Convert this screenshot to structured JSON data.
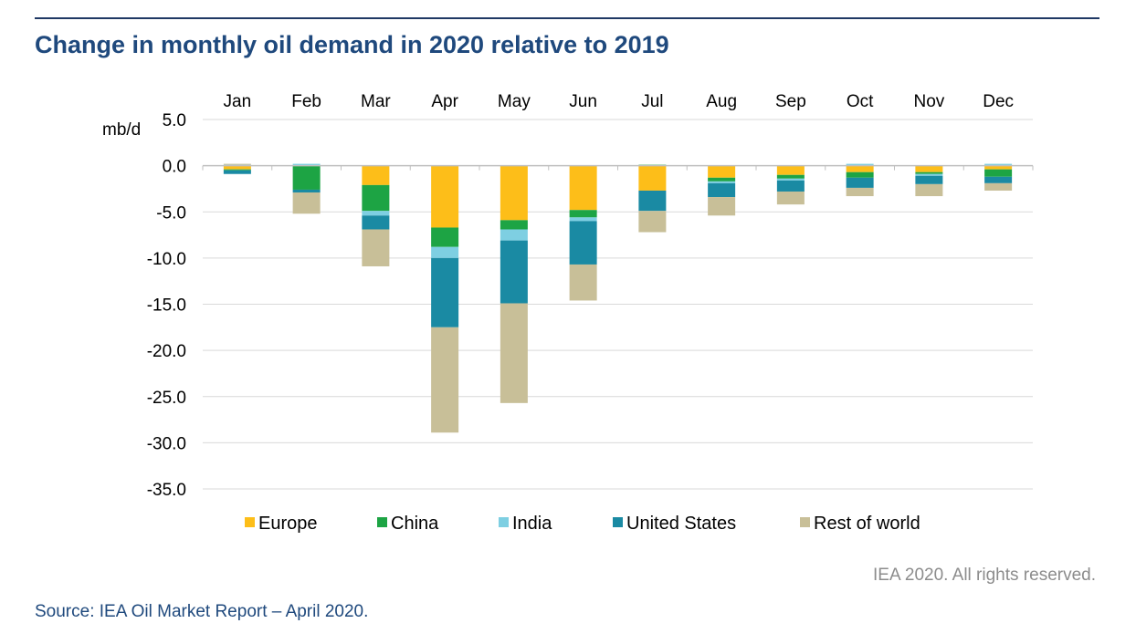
{
  "title": "Change in monthly oil demand in 2020 relative to 2019",
  "copyright": "IEA 2020. All rights reserved.",
  "source": "Source: IEA Oil Market Report – April 2020.",
  "chart_data": {
    "type": "bar",
    "stacked": true,
    "ylabel": "mb/d",
    "ylim": [
      -35,
      5
    ],
    "yticks": [
      5,
      0,
      -5,
      -10,
      -15,
      -20,
      -25,
      -30,
      -35
    ],
    "ytick_labels": [
      "5.0",
      "0.0",
      "-5.0",
      "-10.0",
      "-15.0",
      "-20.0",
      "-25.0",
      "-30.0",
      "-35.0"
    ],
    "grid": true,
    "category_axis_position": "top",
    "legend_position": "bottom",
    "categories": [
      "Jan",
      "Feb",
      "Mar",
      "Apr",
      "May",
      "Jun",
      "Jul",
      "Aug",
      "Sep",
      "Oct",
      "Nov",
      "Dec"
    ],
    "series": [
      {
        "name": "Europe",
        "color": "#fdbe19",
        "values": [
          -0.4,
          0.0,
          -2.1,
          -6.7,
          -5.9,
          -4.8,
          -2.7,
          -1.3,
          -1.0,
          -0.7,
          -0.7,
          -0.4
        ]
      },
      {
        "name": "China",
        "color": "#1da444",
        "values": [
          -0.1,
          -2.6,
          -2.8,
          -2.1,
          -1.0,
          -0.8,
          0.1,
          -0.4,
          -0.4,
          -0.6,
          -0.2,
          -0.8
        ]
      },
      {
        "name": "India",
        "color": "#7ecfe2",
        "values": [
          0.1,
          0.2,
          -0.5,
          -1.2,
          -1.2,
          -0.4,
          0.0,
          -0.2,
          -0.2,
          0.2,
          -0.2,
          0.2
        ]
      },
      {
        "name": "United States",
        "color": "#1a8aa3",
        "values": [
          -0.4,
          -0.3,
          -1.5,
          -7.5,
          -6.8,
          -4.7,
          -2.2,
          -1.5,
          -1.2,
          -1.1,
          -0.9,
          -0.7
        ]
      },
      {
        "name": "Rest of world",
        "color": "#c8bf98",
        "values": [
          0.1,
          -2.3,
          -4.0,
          -11.4,
          -10.8,
          -3.9,
          -2.3,
          -2.0,
          -1.4,
          -0.9,
          -1.3,
          -0.8
        ]
      }
    ]
  }
}
